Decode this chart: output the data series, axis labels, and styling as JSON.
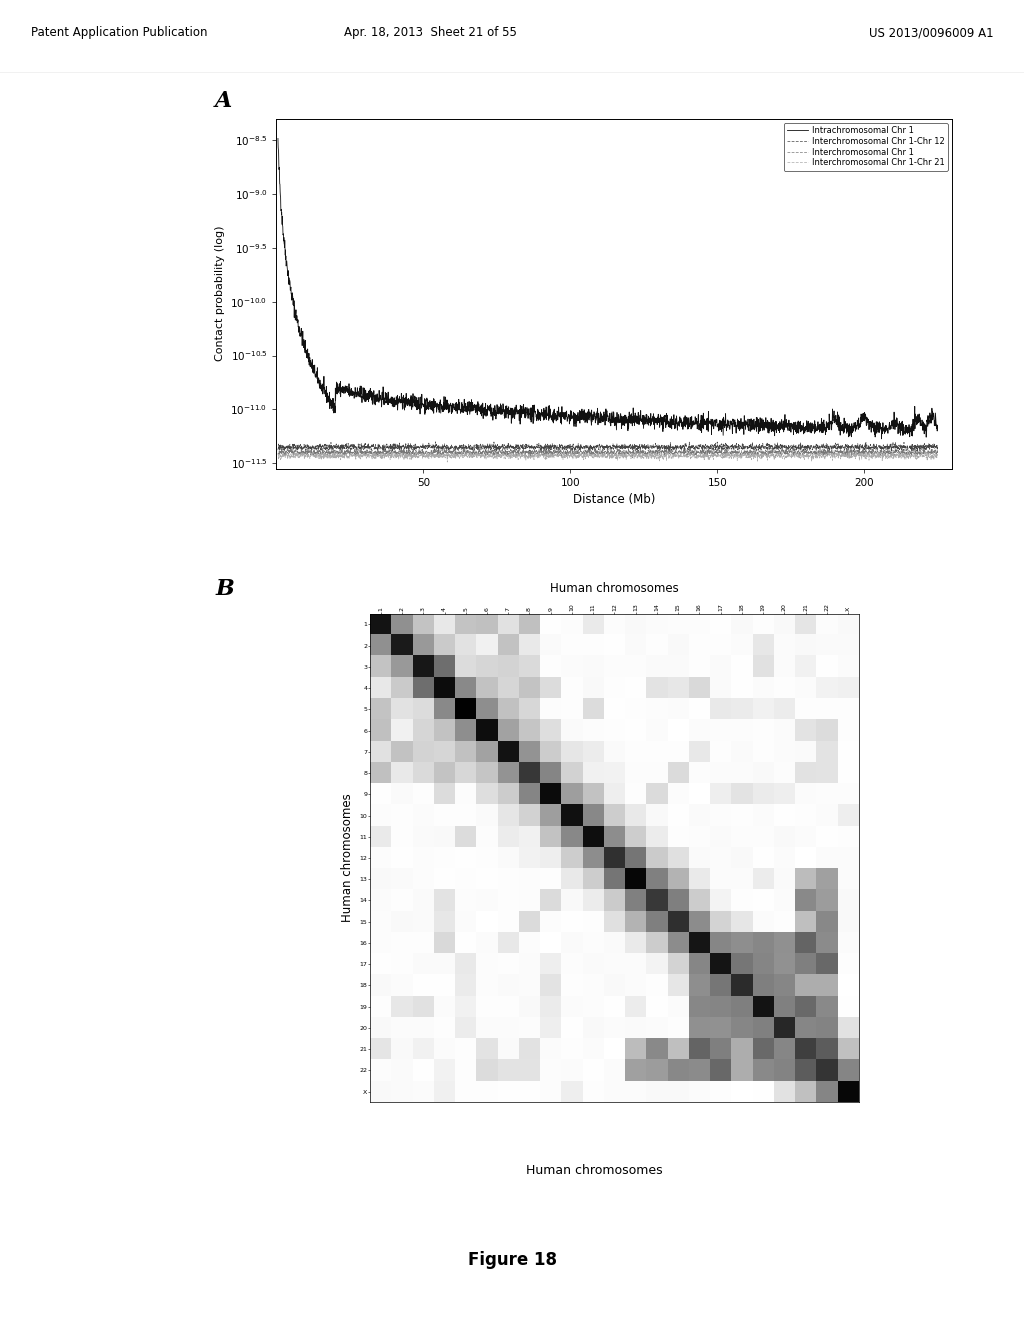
{
  "header_left": "Patent Application Publication",
  "header_center": "Apr. 18, 2013  Sheet 21 of 55",
  "header_right": "US 2013/0096009 A1",
  "panel_A_label": "A",
  "panel_B_label": "B",
  "figure_caption": "Figure 18",
  "plot_A": {
    "xlabel": "Distance (Mb)",
    "ylabel": "Contact probability (log)",
    "xmin": 0,
    "xmax": 230,
    "xticks": [
      50,
      100,
      150,
      200
    ],
    "ytick_vals": [
      -8.5,
      -9.0,
      -9.5,
      -10.0,
      -10.5,
      -11.0,
      -11.5
    ],
    "legend": [
      {
        "label": "Intrachromosomal Chr 1",
        "ls": "-",
        "color": "#111111"
      },
      {
        "label": "Interchromosomal Chr 1-Chr 12",
        "ls": "--",
        "color": "#444444"
      },
      {
        "label": "Interchromosomal Chr 1",
        "ls": "--",
        "color": "#777777"
      },
      {
        "label": "Interchromosomal Chr 1-Chr 21",
        "ls": "--",
        "color": "#aaaaaa"
      }
    ]
  },
  "plot_B": {
    "xlabel": "Human chromosomes",
    "ylabel": "Human chromosomes",
    "chromosomes": [
      "1",
      "2",
      "3",
      "4",
      "5",
      "6",
      "7",
      "8",
      "9",
      "10",
      "11",
      "12",
      "13",
      "14",
      "15",
      "16",
      "17",
      "18",
      "19",
      "20",
      "21",
      "22",
      "X"
    ]
  },
  "bg_color": "#e8e8e8",
  "text_color": "#000000"
}
